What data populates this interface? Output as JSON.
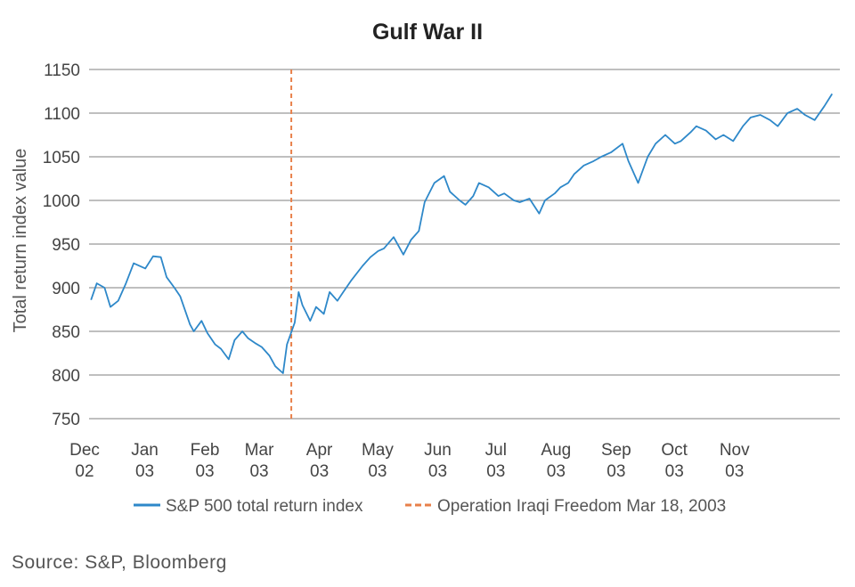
{
  "chart_data": {
    "type": "line",
    "title": "Gulf War II",
    "xlabel": "",
    "ylabel": "Total return index value",
    "ylim": [
      750,
      1150
    ],
    "yticks": [
      "750",
      "800",
      "850",
      "900",
      "950",
      "1000",
      "1050",
      "1100",
      "1150"
    ],
    "xticks": [
      {
        "month": "Dec",
        "year": "02"
      },
      {
        "month": "Jan",
        "year": "03"
      },
      {
        "month": "Feb",
        "year": "03"
      },
      {
        "month": "Mar",
        "year": "03"
      },
      {
        "month": "Apr",
        "year": "03"
      },
      {
        "month": "May",
        "year": "03"
      },
      {
        "month": "Jun",
        "year": "03"
      },
      {
        "month": "Jul",
        "year": "03"
      },
      {
        "month": "Aug",
        "year": "03"
      },
      {
        "month": "Sep",
        "year": "03"
      },
      {
        "month": "Oct",
        "year": "03"
      },
      {
        "month": "Nov",
        "year": "03"
      }
    ],
    "grid": "horizontal",
    "legend_position": "bottom",
    "series": [
      {
        "name": "S&P 500 total return index",
        "color": "#2e88c9",
        "x": [
          "2002-12-02",
          "2002-12-05",
          "2002-12-09",
          "2002-12-12",
          "2002-12-16",
          "2002-12-20",
          "2002-12-24",
          "2002-12-30",
          "2003-01-03",
          "2003-01-07",
          "2003-01-10",
          "2003-01-14",
          "2003-01-17",
          "2003-01-22",
          "2003-01-24",
          "2003-01-28",
          "2003-01-31",
          "2003-02-04",
          "2003-02-07",
          "2003-02-11",
          "2003-02-14",
          "2003-02-18",
          "2003-02-21",
          "2003-02-25",
          "2003-02-28",
          "2003-03-04",
          "2003-03-07",
          "2003-03-11",
          "2003-03-13",
          "2003-03-17",
          "2003-03-19",
          "2003-03-21",
          "2003-03-25",
          "2003-03-28",
          "2003-04-01",
          "2003-04-04",
          "2003-04-08",
          "2003-04-11",
          "2003-04-15",
          "2003-04-21",
          "2003-04-25",
          "2003-04-29",
          "2003-05-02",
          "2003-05-07",
          "2003-05-12",
          "2003-05-16",
          "2003-05-20",
          "2003-05-23",
          "2003-05-28",
          "2003-06-02",
          "2003-06-05",
          "2003-06-10",
          "2003-06-13",
          "2003-06-17",
          "2003-06-20",
          "2003-06-25",
          "2003-06-30",
          "2003-07-03",
          "2003-07-08",
          "2003-07-11",
          "2003-07-16",
          "2003-07-21",
          "2003-07-24",
          "2003-07-29",
          "2003-08-01",
          "2003-08-05",
          "2003-08-08",
          "2003-08-13",
          "2003-08-18",
          "2003-08-22",
          "2003-08-27",
          "2003-09-02",
          "2003-09-05",
          "2003-09-10",
          "2003-09-15",
          "2003-09-19",
          "2003-09-24",
          "2003-09-29",
          "2003-10-02",
          "2003-10-07",
          "2003-10-10",
          "2003-10-15",
          "2003-10-20",
          "2003-10-24",
          "2003-10-29",
          "2003-11-03",
          "2003-11-07",
          "2003-11-12",
          "2003-11-17",
          "2003-11-21",
          "2003-11-26",
          "2003-12-01",
          "2003-12-05",
          "2003-12-10",
          "2003-12-15",
          "2003-12-19"
        ],
        "y": [
          886,
          905,
          900,
          878,
          885,
          905,
          928,
          922,
          936,
          935,
          912,
          900,
          890,
          858,
          850,
          862,
          848,
          835,
          830,
          818,
          840,
          850,
          842,
          836,
          832,
          822,
          810,
          802,
          835,
          860,
          895,
          880,
          862,
          878,
          870,
          895,
          885,
          895,
          908,
          925,
          935,
          942,
          945,
          958,
          938,
          955,
          965,
          998,
          1020,
          1028,
          1010,
          1000,
          995,
          1005,
          1020,
          1015,
          1005,
          1008,
          1000,
          998,
          1002,
          985,
          1000,
          1008,
          1015,
          1020,
          1030,
          1040,
          1045,
          1050,
          1055,
          1065,
          1045,
          1020,
          1050,
          1065,
          1075,
          1065,
          1068,
          1078,
          1085,
          1080,
          1070,
          1075,
          1068,
          1085,
          1095,
          1098,
          1092,
          1085,
          1100,
          1105,
          1098,
          1092,
          1108,
          1122
        ]
      }
    ],
    "annotations": [
      {
        "label": "Operation Iraqi Freedom Mar 18, 2003",
        "date": "2003-03-18",
        "style": "dashed",
        "color": "#e8804a"
      }
    ]
  },
  "source_text": "Source: S&P, Bloomberg"
}
